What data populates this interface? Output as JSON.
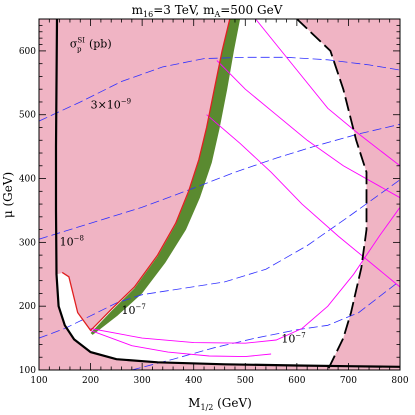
{
  "chart_data": {
    "type": "contour",
    "title_main": "m",
    "title_main_sub": "16",
    "title_main_rest": "=3 TeV,  m",
    "title_second_sub": "A",
    "title_second_rest": "=500 GeV",
    "xlabel_main": "M",
    "xlabel_sub": "1/2",
    "xlabel_rest": " (GeV)",
    "ylabel": "μ (GeV)",
    "xlim": [
      100,
      800
    ],
    "ylim": [
      100,
      650
    ],
    "xticks": [
      100,
      200,
      300,
      400,
      500,
      600,
      700,
      800
    ],
    "yticks": [
      100,
      200,
      300,
      400,
      500,
      600
    ],
    "xtick_labels": [
      "100",
      "200",
      "300",
      "400",
      "500",
      "600",
      "700",
      "800"
    ],
    "ytick_labels": [
      "100",
      "200",
      "300",
      "400",
      "500",
      "600"
    ],
    "colors": {
      "excluded": "#f0b4c4",
      "green_band": "#5a8a30",
      "red_edge": "#e02020",
      "solid_black": "#000000",
      "magenta": "#ff00ff",
      "blue_dashed": "#3030ff"
    },
    "annotations": {
      "sigma_symbol": "σ",
      "sigma_super": "SI",
      "sigma_sub": "p",
      "sigma_unit": " (pb)",
      "label_3e9_base": "3×10",
      "label_3e9_exp": "−9",
      "label_1e8_base": "10",
      "label_1e8_exp": "−8",
      "label_1e7a_base": "10",
      "label_1e7a_exp": "−7",
      "label_1e7b_base": "10",
      "label_1e7b_exp": "−7"
    },
    "annotation_positions": {
      "sigma": [
        160,
        605
      ],
      "label_3e9": [
        200,
        510
      ],
      "label_1e8": [
        140,
        295
      ],
      "label_1e7a": [
        260,
        188
      ],
      "label_1e7b": [
        570,
        143
      ]
    },
    "series": [
      {
        "role": "left-excluded",
        "points": [
          [
            100,
            100
          ],
          [
            100,
            650
          ],
          [
            470,
            650
          ],
          [
            455,
            600
          ],
          [
            440,
            540
          ],
          [
            425,
            480
          ],
          [
            410,
            430
          ],
          [
            390,
            380
          ],
          [
            365,
            330
          ],
          [
            330,
            280
          ],
          [
            285,
            230
          ],
          [
            240,
            195
          ],
          [
            210,
            170
          ],
          [
            200,
            162
          ],
          [
            175,
            190
          ],
          [
            158,
            246
          ],
          [
            145,
            252
          ],
          [
            135,
            250
          ],
          [
            138,
            200
          ],
          [
            150,
            170
          ],
          [
            168,
            148
          ],
          [
            200,
            128
          ],
          [
            250,
            117
          ],
          [
            330,
            112
          ],
          [
            460,
            109
          ],
          [
            600,
            107
          ],
          [
            700,
            106
          ],
          [
            800,
            105
          ],
          [
            800,
            100
          ]
        ]
      },
      {
        "role": "right-excluded",
        "points": [
          [
            600,
            650
          ],
          [
            665,
            600
          ],
          [
            690,
            540
          ],
          [
            715,
            460
          ],
          [
            735,
            410
          ],
          [
            735,
            320
          ],
          [
            725,
            260
          ],
          [
            705,
            190
          ],
          [
            690,
            150
          ],
          [
            660,
            100
          ],
          [
            800,
            100
          ],
          [
            800,
            650
          ]
        ]
      },
      {
        "role": "green-band",
        "points": [
          [
            200,
            158
          ],
          [
            240,
            192
          ],
          [
            285,
            228
          ],
          [
            330,
            278
          ],
          [
            365,
            328
          ],
          [
            390,
            378
          ],
          [
            410,
            428
          ],
          [
            425,
            478
          ],
          [
            440,
            538
          ],
          [
            455,
            598
          ],
          [
            470,
            650
          ],
          [
            490,
            650
          ],
          [
            478,
            600
          ],
          [
            465,
            540
          ],
          [
            450,
            478
          ],
          [
            435,
            425
          ],
          [
            412,
            370
          ],
          [
            385,
            320
          ],
          [
            345,
            268
          ],
          [
            300,
            220
          ],
          [
            252,
            185
          ],
          [
            212,
            160
          ],
          [
            204,
            155
          ]
        ]
      },
      {
        "role": "red-edge",
        "points": [
          [
            145,
            253
          ],
          [
            158,
            246
          ],
          [
            175,
            190
          ],
          [
            200,
            162
          ],
          [
            210,
            170
          ],
          [
            240,
            195
          ],
          [
            285,
            230
          ],
          [
            330,
            280
          ],
          [
            365,
            330
          ],
          [
            390,
            380
          ],
          [
            410,
            430
          ],
          [
            425,
            480
          ],
          [
            440,
            540
          ],
          [
            455,
            600
          ],
          [
            470,
            650
          ]
        ]
      },
      {
        "role": "black-boundary",
        "points": [
          [
            135,
            650
          ],
          [
            134,
            550
          ],
          [
            133,
            450
          ],
          [
            133,
            350
          ],
          [
            134,
            250
          ],
          [
            138,
            200
          ],
          [
            150,
            170
          ],
          [
            168,
            148
          ],
          [
            200,
            128
          ],
          [
            250,
            117
          ],
          [
            330,
            112
          ],
          [
            460,
            109
          ],
          [
            600,
            107
          ],
          [
            700,
            106
          ],
          [
            800,
            105
          ]
        ]
      },
      {
        "role": "black-dashed-boundary",
        "points": [
          [
            600,
            650
          ],
          [
            665,
            600
          ],
          [
            690,
            540
          ],
          [
            715,
            460
          ],
          [
            735,
            410
          ],
          [
            735,
            320
          ],
          [
            725,
            260
          ],
          [
            705,
            190
          ],
          [
            690,
            150
          ],
          [
            660,
            100
          ]
        ]
      },
      {
        "role": "magenta-1",
        "points": [
          [
            520,
            650
          ],
          [
            560,
            610
          ],
          [
            610,
            560
          ],
          [
            660,
            510
          ],
          [
            720,
            470
          ],
          [
            800,
            420
          ]
        ]
      },
      {
        "role": "magenta-2",
        "points": [
          [
            445,
            585
          ],
          [
            500,
            540
          ],
          [
            560,
            500
          ],
          [
            620,
            460
          ],
          [
            690,
            420
          ],
          [
            800,
            370
          ]
        ]
      },
      {
        "role": "magenta-3",
        "points": [
          [
            425,
            500
          ],
          [
            490,
            455
          ],
          [
            550,
            410
          ],
          [
            610,
            360
          ],
          [
            680,
            310
          ],
          [
            740,
            270
          ],
          [
            800,
            230
          ]
        ]
      },
      {
        "role": "magenta-4",
        "points": [
          [
            200,
            165
          ],
          [
            300,
            150
          ],
          [
            400,
            143
          ],
          [
            500,
            142
          ],
          [
            560,
            147
          ],
          [
            610,
            165
          ],
          [
            660,
            200
          ],
          [
            710,
            250
          ],
          [
            760,
            310
          ],
          [
            800,
            355
          ]
        ]
      },
      {
        "role": "magenta-5",
        "points": [
          [
            200,
            162
          ],
          [
            280,
            138
          ],
          [
            350,
            128
          ],
          [
            430,
            122
          ],
          [
            500,
            121
          ],
          [
            550,
            125
          ]
        ]
      },
      {
        "role": "blue-3e-9",
        "points": [
          [
            100,
            490
          ],
          [
            180,
            520
          ],
          [
            260,
            552
          ],
          [
            340,
            575
          ],
          [
            420,
            588
          ],
          [
            500,
            590
          ],
          [
            580,
            590
          ],
          [
            660,
            586
          ],
          [
            740,
            578
          ],
          [
            800,
            570
          ]
        ]
      },
      {
        "role": "blue-1e-8",
        "points": [
          [
            100,
            305
          ],
          [
            200,
            330
          ],
          [
            300,
            355
          ],
          [
            400,
            385
          ],
          [
            480,
            410
          ],
          [
            560,
            432
          ],
          [
            640,
            452
          ],
          [
            720,
            470
          ],
          [
            800,
            485
          ]
        ]
      },
      {
        "role": "blue-1e-7a",
        "points": [
          [
            100,
            150
          ],
          [
            150,
            165
          ],
          [
            200,
            185
          ],
          [
            250,
            205
          ],
          [
            300,
            218
          ],
          [
            380,
            228
          ],
          [
            460,
            238
          ],
          [
            540,
            258
          ],
          [
            620,
            295
          ],
          [
            700,
            340
          ],
          [
            760,
            375
          ],
          [
            800,
            398
          ]
        ]
      },
      {
        "role": "blue-1e-7b",
        "points": [
          [
            280,
            100
          ],
          [
            360,
            117
          ],
          [
            440,
            135
          ],
          [
            520,
            150
          ],
          [
            600,
            163
          ],
          [
            660,
            170
          ],
          [
            720,
            190
          ],
          [
            800,
            240
          ]
        ]
      }
    ]
  }
}
